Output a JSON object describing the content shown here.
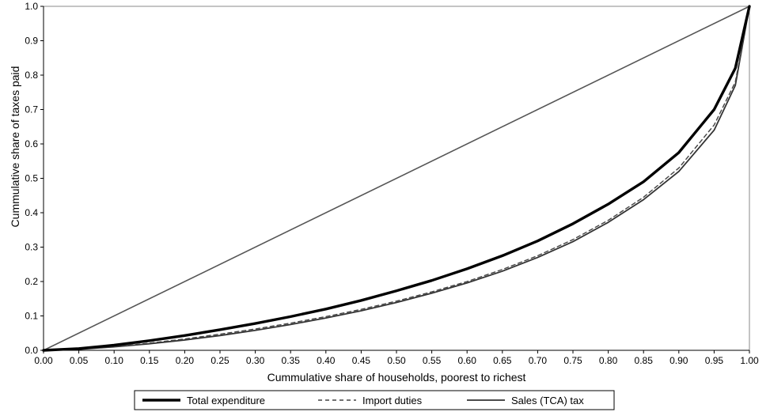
{
  "chart_data": {
    "type": "line",
    "title": "",
    "xlabel": "Cummulative share of households, poorest to richest",
    "ylabel": "Cummulative share of taxes paid",
    "xlim": [
      0,
      1
    ],
    "ylim": [
      0,
      1
    ],
    "grid": false,
    "legend_position": "bottom",
    "x_ticks": [
      "0.00",
      "0.05",
      "0.10",
      "0.15",
      "0.20",
      "0.25",
      "0.30",
      "0.35",
      "0.40",
      "0.45",
      "0.50",
      "0.55",
      "0.60",
      "0.65",
      "0.70",
      "0.75",
      "0.80",
      "0.85",
      "0.90",
      "0.95",
      "1.00"
    ],
    "y_ticks": [
      "0.0",
      "0.1",
      "0.2",
      "0.3",
      "0.4",
      "0.5",
      "0.6",
      "0.7",
      "0.8",
      "0.9",
      "1.0"
    ],
    "equality_line": {
      "x": [
        0,
        1
      ],
      "y": [
        0,
        1
      ],
      "color": "#555555"
    },
    "series": [
      {
        "name": "Total expenditure",
        "style": "thick-solid",
        "color": "#000000",
        "x": [
          0,
          0.05,
          0.1,
          0.15,
          0.2,
          0.25,
          0.3,
          0.35,
          0.4,
          0.45,
          0.5,
          0.55,
          0.6,
          0.65,
          0.7,
          0.75,
          0.8,
          0.85,
          0.9,
          0.95,
          0.98,
          1.0
        ],
        "y": [
          0,
          0.005,
          0.015,
          0.028,
          0.043,
          0.06,
          0.078,
          0.098,
          0.12,
          0.145,
          0.173,
          0.203,
          0.237,
          0.275,
          0.318,
          0.368,
          0.425,
          0.49,
          0.575,
          0.7,
          0.82,
          1.0
        ]
      },
      {
        "name": "Import duties",
        "style": "dashed",
        "color": "#444444",
        "x": [
          0,
          0.05,
          0.1,
          0.15,
          0.2,
          0.25,
          0.3,
          0.35,
          0.4,
          0.45,
          0.5,
          0.55,
          0.6,
          0.65,
          0.7,
          0.75,
          0.8,
          0.85,
          0.9,
          0.95,
          0.98,
          1.0
        ],
        "y": [
          0,
          0.004,
          0.011,
          0.021,
          0.033,
          0.047,
          0.062,
          0.079,
          0.098,
          0.119,
          0.143,
          0.17,
          0.2,
          0.235,
          0.275,
          0.322,
          0.378,
          0.445,
          0.53,
          0.655,
          0.78,
          1.0
        ]
      },
      {
        "name": "Sales (TCA) tax",
        "style": "thin-solid",
        "color": "#333333",
        "x": [
          0,
          0.05,
          0.1,
          0.15,
          0.2,
          0.25,
          0.3,
          0.35,
          0.4,
          0.45,
          0.5,
          0.55,
          0.6,
          0.65,
          0.7,
          0.75,
          0.8,
          0.85,
          0.9,
          0.95,
          0.98,
          1.0
        ],
        "y": [
          0,
          0.003,
          0.01,
          0.019,
          0.03,
          0.043,
          0.058,
          0.075,
          0.094,
          0.115,
          0.139,
          0.166,
          0.196,
          0.23,
          0.27,
          0.316,
          0.372,
          0.438,
          0.52,
          0.64,
          0.77,
          1.0
        ]
      }
    ]
  }
}
